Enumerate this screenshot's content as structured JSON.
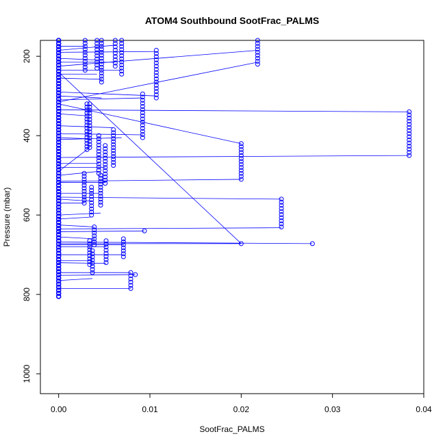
{
  "chart_data": {
    "type": "scatter",
    "title": "ATOM4 Southbound SootFrac_PALMS",
    "xlabel": "SootFrac_PALMS",
    "ylabel": "Pressure (mbar)",
    "xlim": [
      -0.002,
      0.04
    ],
    "ylim": [
      1050,
      160
    ],
    "y_reversed": true,
    "grid": false,
    "legend": "none",
    "x_ticks": [
      {
        "value": 0,
        "label": "0.00"
      },
      {
        "value": 0.01,
        "label": "0.01"
      },
      {
        "value": 0.02,
        "label": "0.02"
      },
      {
        "value": 0.03,
        "label": "0.03"
      },
      {
        "value": 0.04,
        "label": "0.04"
      }
    ],
    "y_ticks": [
      {
        "value": 200,
        "label": "200"
      },
      {
        "value": 400,
        "label": "400"
      },
      {
        "value": 600,
        "label": "600"
      },
      {
        "value": 800,
        "label": "800"
      },
      {
        "value": 1000,
        "label": "1000"
      }
    ],
    "series": [
      {
        "marker": "open-circle",
        "color": "#0000ff",
        "profiles": [
          {
            "x": 0.0,
            "p_top": 160,
            "p_bottom": 805
          },
          {
            "x": 0.0029,
            "p_top": 160,
            "p_bottom": 235
          },
          {
            "x": 0.0042,
            "p_top": 160,
            "p_bottom": 230
          },
          {
            "x": 0.0047,
            "p_top": 160,
            "p_bottom": 265
          },
          {
            "x": 0.0062,
            "p_top": 160,
            "p_bottom": 225
          },
          {
            "x": 0.0069,
            "p_top": 160,
            "p_bottom": 245
          },
          {
            "x": 0.0107,
            "p_top": 185,
            "p_bottom": 305
          },
          {
            "x": 0.0218,
            "p_top": 160,
            "p_bottom": 220
          },
          {
            "x": 0.0092,
            "p_top": 295,
            "p_bottom": 405
          },
          {
            "x": 0.0031,
            "p_top": 320,
            "p_bottom": 435
          },
          {
            "x": 0.0034,
            "p_top": 320,
            "p_bottom": 430
          },
          {
            "x": 0.0044,
            "p_top": 400,
            "p_bottom": 495
          },
          {
            "x": 0.0051,
            "p_top": 425,
            "p_bottom": 520
          },
          {
            "x": 0.006,
            "p_top": 385,
            "p_bottom": 475
          },
          {
            "x": 0.02,
            "p_top": 420,
            "p_bottom": 510
          },
          {
            "x": 0.0384,
            "p_top": 340,
            "p_bottom": 450
          },
          {
            "x": 0.0028,
            "p_top": 495,
            "p_bottom": 570
          },
          {
            "x": 0.0046,
            "p_top": 500,
            "p_bottom": 575
          },
          {
            "x": 0.0036,
            "p_top": 530,
            "p_bottom": 600
          },
          {
            "x": 0.0244,
            "p_top": 560,
            "p_bottom": 630
          },
          {
            "x": 0.0039,
            "p_top": 630,
            "p_bottom": 675
          },
          {
            "x": 0.0034,
            "p_top": 665,
            "p_bottom": 725
          },
          {
            "x": 0.0037,
            "p_top": 690,
            "p_bottom": 745
          },
          {
            "x": 0.0052,
            "p_top": 665,
            "p_bottom": 720
          },
          {
            "x": 0.0071,
            "p_top": 660,
            "p_bottom": 705
          },
          {
            "x": 0.0079,
            "p_top": 745,
            "p_bottom": 785
          },
          {
            "x": 0.0094,
            "p_top": 640,
            "p_bottom": 640
          },
          {
            "x": 0.02,
            "p_top": 672,
            "p_bottom": 672
          },
          {
            "x": 0.0278,
            "p_top": 672,
            "p_bottom": 672
          },
          {
            "x": 0.0084,
            "p_top": 750,
            "p_bottom": 750
          }
        ],
        "connector_lines": [
          [
            0.0,
            175,
            0.0029,
            175
          ],
          [
            0.0,
            185,
            0.0062,
            172
          ],
          [
            0.0,
            190,
            0.0107,
            188
          ],
          [
            0.0,
            205,
            0.0047,
            210
          ],
          [
            0.0,
            215,
            0.0062,
            215
          ],
          [
            0.0,
            225,
            0.0218,
            185
          ],
          [
            0.0,
            235,
            0.0069,
            235
          ],
          [
            0.0,
            245,
            0.0042,
            245
          ],
          [
            0.0,
            255,
            0.0047,
            258
          ],
          [
            0.0,
            290,
            0.0107,
            300
          ],
          [
            0.0,
            300,
            0.0047,
            305
          ],
          [
            0.0,
            310,
            0.0092,
            305
          ],
          [
            0.0,
            315,
            0.0218,
            215
          ],
          [
            0.0,
            335,
            0.0384,
            340
          ],
          [
            0.0,
            345,
            0.0031,
            350
          ],
          [
            0.0,
            375,
            0.006,
            380
          ],
          [
            0.0,
            395,
            0.0092,
            398
          ],
          [
            0.0,
            405,
            0.0034,
            408
          ],
          [
            0.0,
            410,
            0.0069,
            405
          ],
          [
            0.0,
            455,
            0.0384,
            450
          ],
          [
            0.0,
            470,
            0.0044,
            470
          ],
          [
            0.0,
            480,
            0.0051,
            480
          ],
          [
            0.0,
            490,
            0.0034,
            430
          ],
          [
            0.0,
            500,
            0.0044,
            490
          ],
          [
            0.0,
            515,
            0.02,
            510
          ],
          [
            0.0,
            518,
            0.0051,
            518
          ],
          [
            0.0,
            545,
            0.0044,
            545
          ],
          [
            0.0,
            555,
            0.0244,
            560
          ],
          [
            0.0,
            560,
            0.0036,
            565
          ],
          [
            0.0,
            570,
            0.0028,
            570
          ],
          [
            0.0,
            600,
            0.0046,
            595
          ],
          [
            0.0,
            610,
            0.0036,
            605
          ],
          [
            0.0,
            625,
            0.0039,
            630
          ],
          [
            0.0,
            635,
            0.0244,
            632
          ],
          [
            0.0,
            642,
            0.0094,
            640
          ],
          [
            0.0,
            655,
            0.0039,
            660
          ],
          [
            0.0,
            668,
            0.0278,
            672
          ],
          [
            0.0,
            672,
            0.02,
            672
          ],
          [
            0.0,
            675,
            0.0071,
            675
          ],
          [
            0.0,
            680,
            0.0052,
            680
          ],
          [
            0.0,
            700,
            0.0071,
            700
          ],
          [
            0.0,
            715,
            0.0037,
            715
          ],
          [
            0.0,
            720,
            0.0052,
            722
          ],
          [
            0.0,
            745,
            0.0079,
            745
          ],
          [
            0.0,
            752,
            0.0084,
            750
          ],
          [
            0.0,
            765,
            0.0037,
            760
          ],
          [
            0.0,
            785,
            0.0079,
            785
          ],
          [
            0.0,
            320,
            0.02,
            420
          ],
          [
            0.0,
            240,
            0.02,
            672
          ]
        ]
      }
    ]
  }
}
